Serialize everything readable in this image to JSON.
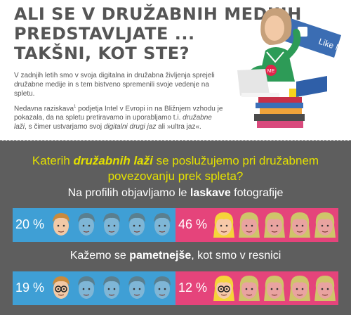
{
  "title_lines": [
    "ALI SE V DRUŽABNIH MEDIJIH",
    "PREDSTAVLJATE ...",
    "TAKŠNI, KOT STE?"
  ],
  "intro": "V zadnjih letih smo v svoja digitalna in družabna življenja sprejeli družabne medije in s tem bistveno spremenili svoje vedenje na spletu.",
  "study": {
    "a": "Nedavna raziskava",
    "sup": "1",
    "b": " podjetja Intel v Evropi in na Bližnjem vzhodu je pokazala, da na spletu pretiravamo in uporabljamo t.i. ",
    "c": "družabne laži",
    "d": ", s čimer ustvarjamo svoj ",
    "e": "digitalni drugi jaz",
    "f": " ali »ultra jaz«."
  },
  "sign_label": "Like Me",
  "shirt_label": "ME",
  "question": {
    "a": "Katerih ",
    "b": "družabnih laži",
    "c": " se poslužujemo pri družabnem",
    "d": "povezovanju prek spleta?"
  },
  "section1": {
    "a": "Na profilih objavljamo le ",
    "b": "laskave",
    "c": " fotografije"
  },
  "section2": {
    "a": "Kažemo se ",
    "b": "pametnejše",
    "c": ", kot smo v resnici"
  },
  "row1": {
    "men_label": "20 %",
    "men": 0.2,
    "women_label": "46 %",
    "women": 0.46
  },
  "row2": {
    "men_label": "19 %",
    "men": 0.19,
    "women_label": "12 %",
    "women": 0.12
  },
  "colors": {
    "blue": "#3f9fd5",
    "pink": "#e5447b",
    "yellow_text": "#e3e000",
    "men_active_hair": "#c98a3c",
    "women_active_hair": "#f5d43a"
  }
}
